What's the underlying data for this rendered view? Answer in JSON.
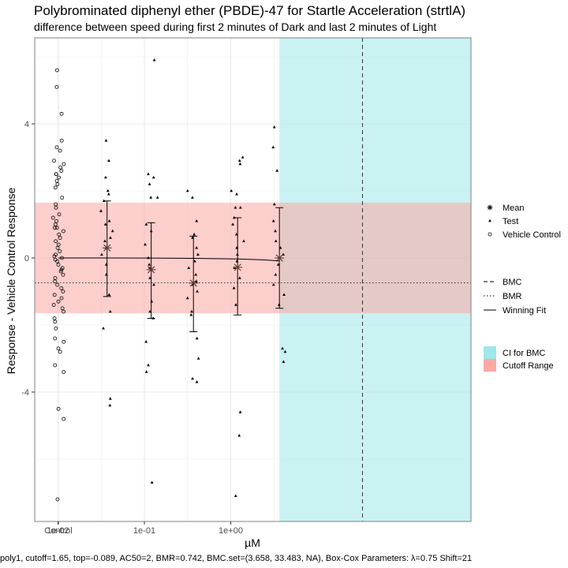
{
  "chart_data": {
    "type": "scatter",
    "title": "Polybrominated diphenyl ether (PBDE)-47 for Startle Acceleration (strtlA)",
    "subtitle": "difference between speed during first 2 minutes of Dark and last 2 minutes of Light",
    "xlabel": "µM",
    "ylabel": "Response - Vehicle Control Response",
    "caption": "poly1, cutoff=1.65, top=-0.089, AC50=2, BMR=0.742, BMC.set=(3.658, 33.483, NA), Box-Cox Parameters: λ=0.75 Shift=21",
    "x_scale": "log10",
    "x_ticks": [
      {
        "label": "Control",
        "x": null
      },
      {
        "label": "1e-02",
        "x": 0.01
      },
      {
        "label": "1e-01",
        "x": 0.1
      },
      {
        "label": "1e+00",
        "x": 1
      }
    ],
    "y_ticks": [
      -4,
      0,
      4
    ],
    "ylim": [
      -7.8,
      6.4
    ],
    "grid": true,
    "cutoff_range": [
      -1.65,
      1.65
    ],
    "bmr_line": -0.742,
    "bmc_x": 33.483,
    "ci_for_bmc": [
      3.658,
      40
    ],
    "vehicle_control": [
      5.6,
      5.1,
      4.3,
      3.5,
      3.2,
      3.3,
      2.9,
      2.8,
      2.7,
      2.6,
      2.5,
      2.5,
      2.4,
      2.3,
      2.2,
      2.1,
      1.8,
      1.6,
      1.5,
      1.3,
      1.2,
      1.1,
      1.0,
      0.9,
      0.9,
      0.8,
      0.7,
      0.6,
      0.5,
      0.4,
      0.3,
      0.2,
      0.1,
      0.05,
      0,
      -0.05,
      -0.1,
      -0.2,
      -0.3,
      -0.35,
      -0.4,
      -0.5,
      -0.6,
      -0.7,
      -0.8,
      -0.9,
      -1.0,
      -1.1,
      -1.2,
      -1.3,
      -1.4,
      -1.5,
      -1.6,
      -1.8,
      -1.9,
      -2.1,
      -2.4,
      -2.5,
      -2.7,
      -2.8,
      -3.2,
      -3.4,
      -4.5,
      -4.8,
      -7.2
    ],
    "test_points": [
      {
        "x": 0.037,
        "values": [
          3.5,
          2.9,
          2.4,
          2.0,
          1.9,
          1.7,
          1.4,
          1.1,
          1.0,
          0.8,
          0.6,
          0.5,
          0.3,
          0.1,
          -0.2,
          -0.5,
          -1.1,
          -1.6,
          -2.1,
          -4.2,
          -4.4
        ]
      },
      {
        "x": 0.12,
        "values": [
          5.9,
          2.5,
          2.4,
          2.2,
          1.8,
          1.8,
          1.0,
          0.8,
          0.4,
          0,
          -0.2,
          -0.3,
          -0.6,
          -0.8,
          -1.3,
          -1.6,
          -1.8,
          -2.5,
          -3.2,
          -3.4,
          -6.7
        ]
      },
      {
        "x": 0.37,
        "values": [
          2.0,
          1.8,
          1.1,
          0.7,
          0.6,
          0.3,
          0.1,
          -0.1,
          -0.3,
          -0.5,
          -0.7,
          -0.8,
          -1.0,
          -1.2,
          -1.6,
          -1.7,
          -2.4,
          -3.0,
          -3.6,
          -3.7
        ]
      },
      {
        "x": 1.2,
        "values": [
          3.0,
          2.9,
          2.8,
          2.0,
          1.9,
          1.5,
          1.5,
          1.2,
          1.0,
          0.7,
          0.5,
          0.3,
          0.1,
          -0.1,
          -0.3,
          -0.6,
          -0.9,
          -1.4,
          -4.6,
          -5.3,
          -7.1
        ]
      },
      {
        "x": 3.658,
        "values": [
          3.9,
          3.3,
          2.6,
          1.6,
          1.1,
          0.8,
          0.5,
          0.3,
          0.1,
          -0.2,
          -0.5,
          -0.8,
          -1.1,
          -1.4,
          -2.7,
          -2.8,
          -3.1
        ]
      }
    ],
    "means": [
      {
        "x": 0.037,
        "mean": 0.3,
        "err_low": -1.15,
        "err_high": 1.7
      },
      {
        "x": 0.12,
        "mean": -0.35,
        "err_low": -1.8,
        "err_high": 1.05
      },
      {
        "x": 0.37,
        "mean": -0.75,
        "err_low": -2.2,
        "err_high": 0.65
      },
      {
        "x": 1.2,
        "mean": -0.28,
        "err_low": -1.7,
        "err_high": 1.2
      },
      {
        "x": 3.658,
        "mean": 0.0,
        "err_low": -1.5,
        "err_high": 1.5
      }
    ],
    "winning_fit": {
      "x": [
        0.037,
        0.12,
        0.37,
        1.2,
        2.5,
        3.658
      ],
      "y": [
        0.0,
        -0.004,
        -0.012,
        -0.03,
        -0.06,
        -0.089
      ]
    },
    "legend": {
      "points": [
        "Mean",
        "Test",
        "Vehicle Control"
      ],
      "lines": [
        "BMC",
        "BMR",
        "Winning Fit"
      ],
      "fills": [
        "CI for BMC",
        "Cutoff Range"
      ]
    },
    "colors": {
      "ci_fill": "#9fe7e9",
      "cutoff_fill": "#fca8a3",
      "mean": "#5a3a35",
      "points": "#000000",
      "panel_border": "#7f7f7f",
      "grid": "#ebebeb"
    }
  }
}
